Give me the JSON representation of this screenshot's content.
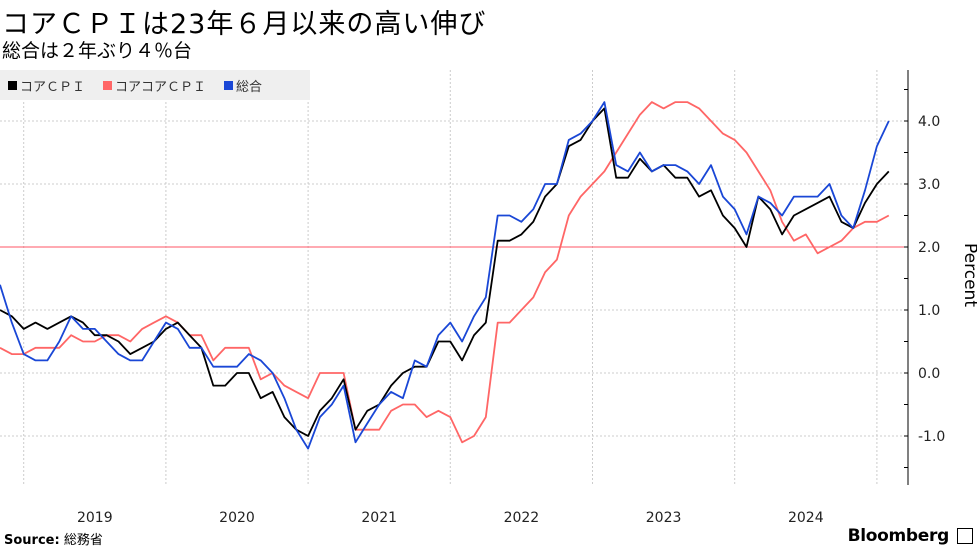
{
  "title": "コアＣＰＩは23年６月以来の高い伸び",
  "subtitle": "総合は２年ぶり４％台",
  "source_label": "Source:",
  "source_value": "総務省",
  "brand": "Bloomberg",
  "chart_data": {
    "type": "line",
    "title": "コアＣＰＩは23年６月以来の高い伸び",
    "subtitle": "総合は２年ぶり４％台",
    "ylabel": "Percent",
    "xlabel": "",
    "ylim": [
      -1.8,
      4.8
    ],
    "yticks": [
      "4.0",
      "3.0",
      "2.0",
      "1.0",
      "0.0",
      "-1.0"
    ],
    "ytick_values": [
      4,
      3,
      2,
      1,
      0,
      -1
    ],
    "xtick_labels": [
      "2019",
      "2020",
      "2021",
      "2022",
      "2023",
      "2024"
    ],
    "x_start": "2018-10",
    "x_end": "2025-01",
    "frequency": "monthly",
    "reference_line": 2.0,
    "grid": true,
    "legend_position": "top-left",
    "series": [
      {
        "name": "コアＣＰＩ",
        "color": "#000000",
        "values": [
          1.0,
          0.9,
          0.7,
          0.8,
          0.7,
          0.8,
          0.9,
          0.8,
          0.6,
          0.6,
          0.5,
          0.3,
          0.4,
          0.5,
          0.7,
          0.8,
          0.6,
          0.4,
          -0.2,
          -0.2,
          0.0,
          0.0,
          -0.4,
          -0.3,
          -0.7,
          -0.9,
          -1.0,
          -0.6,
          -0.4,
          -0.1,
          -0.9,
          -0.6,
          -0.5,
          -0.2,
          0.0,
          0.1,
          0.1,
          0.5,
          0.5,
          0.2,
          0.6,
          0.8,
          2.1,
          2.1,
          2.2,
          2.4,
          2.8,
          3.0,
          3.6,
          3.7,
          4.0,
          4.2,
          3.1,
          3.1,
          3.4,
          3.2,
          3.3,
          3.1,
          3.1,
          2.8,
          2.9,
          2.5,
          2.3,
          2.0,
          2.8,
          2.6,
          2.2,
          2.5,
          2.6,
          2.7,
          2.8,
          2.4,
          2.3,
          2.7,
          3.0,
          3.2
        ]
      },
      {
        "name": "コアコアＣＰＩ",
        "color": "#ff6666",
        "values": [
          0.4,
          0.3,
          0.3,
          0.4,
          0.4,
          0.4,
          0.6,
          0.5,
          0.5,
          0.6,
          0.6,
          0.5,
          0.7,
          0.8,
          0.9,
          0.8,
          0.6,
          0.6,
          0.2,
          0.4,
          0.4,
          0.4,
          -0.1,
          0.0,
          -0.2,
          -0.3,
          -0.4,
          0.0,
          0.0,
          0.0,
          -0.9,
          -0.9,
          -0.9,
          -0.6,
          -0.5,
          -0.5,
          -0.7,
          -0.6,
          -0.7,
          -1.1,
          -1.0,
          -0.7,
          0.8,
          0.8,
          1.0,
          1.2,
          1.6,
          1.8,
          2.5,
          2.8,
          3.0,
          3.2,
          3.5,
          3.8,
          4.1,
          4.3,
          4.2,
          4.3,
          4.3,
          4.2,
          4.0,
          3.8,
          3.7,
          3.5,
          3.2,
          2.9,
          2.4,
          2.1,
          2.2,
          1.9,
          2.0,
          2.1,
          2.3,
          2.4,
          2.4,
          2.5
        ]
      },
      {
        "name": "総合",
        "color": "#1a47d6",
        "values": [
          1.4,
          0.8,
          0.3,
          0.2,
          0.2,
          0.5,
          0.9,
          0.7,
          0.7,
          0.5,
          0.3,
          0.2,
          0.2,
          0.5,
          0.8,
          0.7,
          0.4,
          0.4,
          0.1,
          0.1,
          0.1,
          0.3,
          0.2,
          0.0,
          -0.4,
          -0.9,
          -1.2,
          -0.7,
          -0.5,
          -0.2,
          -1.1,
          -0.8,
          -0.5,
          -0.3,
          -0.4,
          0.2,
          0.1,
          0.6,
          0.8,
          0.5,
          0.9,
          1.2,
          2.5,
          2.5,
          2.4,
          2.6,
          3.0,
          3.0,
          3.7,
          3.8,
          4.0,
          4.3,
          3.3,
          3.2,
          3.5,
          3.2,
          3.3,
          3.3,
          3.2,
          3.0,
          3.3,
          2.8,
          2.6,
          2.2,
          2.8,
          2.7,
          2.5,
          2.8,
          2.8,
          2.8,
          3.0,
          2.5,
          2.3,
          2.9,
          3.6,
          4.0
        ]
      }
    ]
  }
}
